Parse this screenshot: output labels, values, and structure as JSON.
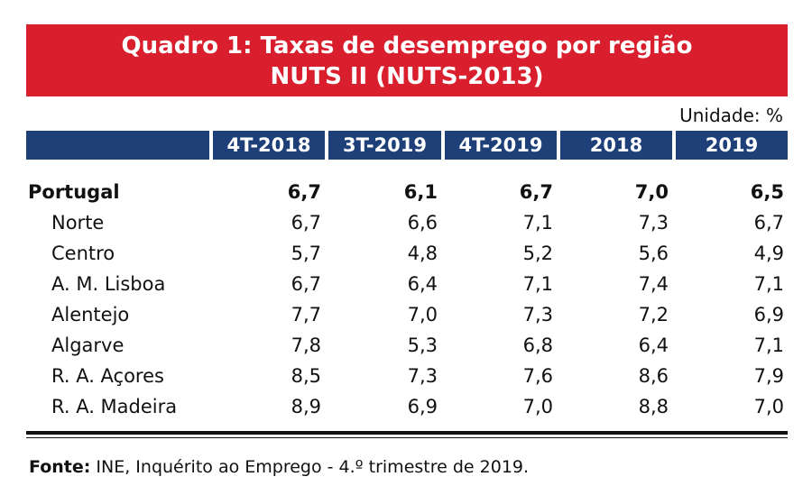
{
  "title": {
    "line1": "Quadro 1: Taxas de desemprego por região",
    "line2": "NUTS II (NUTS-2013)"
  },
  "unit_label": "Unidade: %",
  "columns": [
    "4T-2018",
    "3T-2019",
    "4T-2019",
    "2018",
    "2019"
  ],
  "rows": [
    {
      "label": "Portugal",
      "values": [
        "6,7",
        "6,1",
        "6,7",
        "7,0",
        "6,5"
      ]
    },
    {
      "label": "Norte",
      "values": [
        "6,7",
        "6,6",
        "7,1",
        "7,3",
        "6,7"
      ]
    },
    {
      "label": "Centro",
      "values": [
        "5,7",
        "4,8",
        "5,2",
        "5,6",
        "4,9"
      ]
    },
    {
      "label": "A. M. Lisboa",
      "values": [
        "6,7",
        "6,4",
        "7,1",
        "7,4",
        "7,1"
      ]
    },
    {
      "label": "Alentejo",
      "values": [
        "7,7",
        "7,0",
        "7,3",
        "7,2",
        "6,9"
      ]
    },
    {
      "label": "Algarve",
      "values": [
        "7,8",
        "5,3",
        "6,8",
        "6,4",
        "7,1"
      ]
    },
    {
      "label": "R. A. Açores",
      "values": [
        "8,5",
        "7,3",
        "7,6",
        "8,6",
        "7,9"
      ]
    },
    {
      "label": "R. A. Madeira",
      "values": [
        "8,9",
        "6,9",
        "7,0",
        "8,8",
        "7,0"
      ]
    }
  ],
  "source": {
    "prefix": "Fonte:",
    "text": " INE, Inquérito ao Emprego - 4.º trimestre de 2019."
  }
}
